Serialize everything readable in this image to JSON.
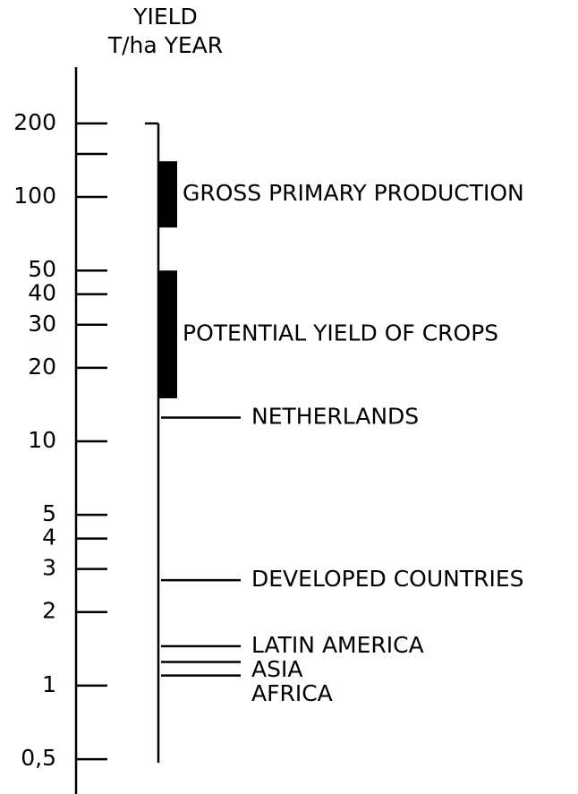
{
  "chart_data": {
    "type": "range",
    "ylabel_lines": [
      "YIELD",
      "T/ha YEAR"
    ],
    "log_scale": true,
    "ylim": [
      0.36,
      340
    ],
    "yticks": [
      200,
      {
        "value": 150,
        "label": null
      },
      100,
      50,
      40,
      30,
      20,
      10,
      5,
      4,
      3,
      2,
      1,
      {
        "value": 0.5,
        "label": "0,5"
      }
    ],
    "color": "#000000",
    "ranges": [
      {
        "name": "GROSS PRIMARY PRODUCTION",
        "low": 75,
        "high": 140
      },
      {
        "name": "POTENTIAL YIELD OF CROPS",
        "low": 15,
        "high": 50
      }
    ],
    "levels": [
      {
        "name": "NETHERLANDS",
        "value": 12.5
      },
      {
        "name": "DEVELOPED COUNTRIES",
        "value": 2.7
      },
      {
        "name": "LATIN AMERICA",
        "value": 1.45
      },
      {
        "name": "ASIA",
        "value": 1.25
      },
      {
        "name": "AFRICA",
        "value": 1.1
      }
    ]
  }
}
